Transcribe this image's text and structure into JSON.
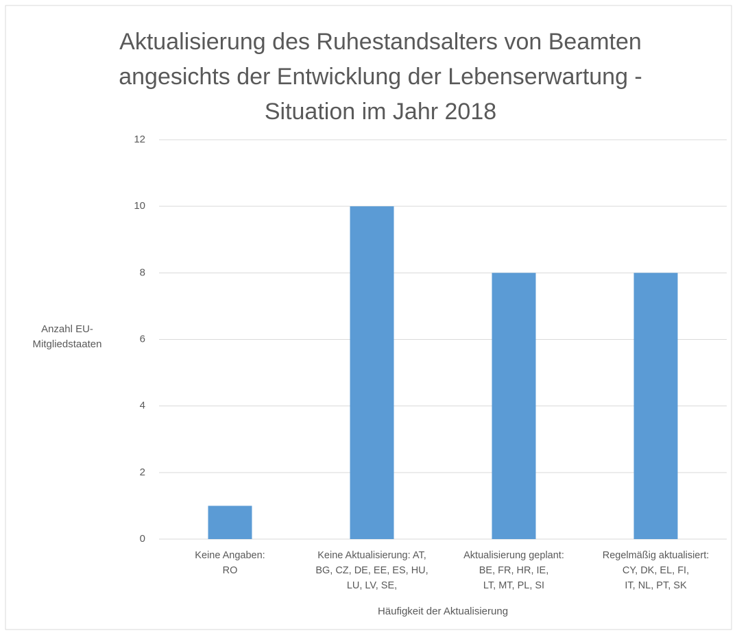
{
  "chart_data": {
    "type": "bar",
    "title": "Aktualisierung des Ruhestandsalters von Beamten\nangesichts der Entwicklung der Lebenserwartung -\nSituation im Jahr 2018",
    "categories": [
      "Keine Angaben:\nRO",
      "Keine Aktualisierung: AT,\nBG, CZ, DE, EE, ES, HU,\nLU, LV, SE,",
      "Aktualisierung geplant:\nBE, FR, HR, IE,\nLT, MT, PL, SI",
      "Regelmäßig aktualisiert:\nCY, DK, EL, FI,\nIT, NL, PT, SK"
    ],
    "values": [
      1,
      10,
      8,
      8
    ],
    "color": "#5b9bd5",
    "x_label": "Häufigkeit der Aktualisierung",
    "y_label": "Anzahl EU-\nMitgliedstaaten",
    "ylim": [
      0,
      12
    ],
    "yticks": [
      0,
      2,
      4,
      6,
      8,
      10,
      12
    ],
    "grid": true
  }
}
